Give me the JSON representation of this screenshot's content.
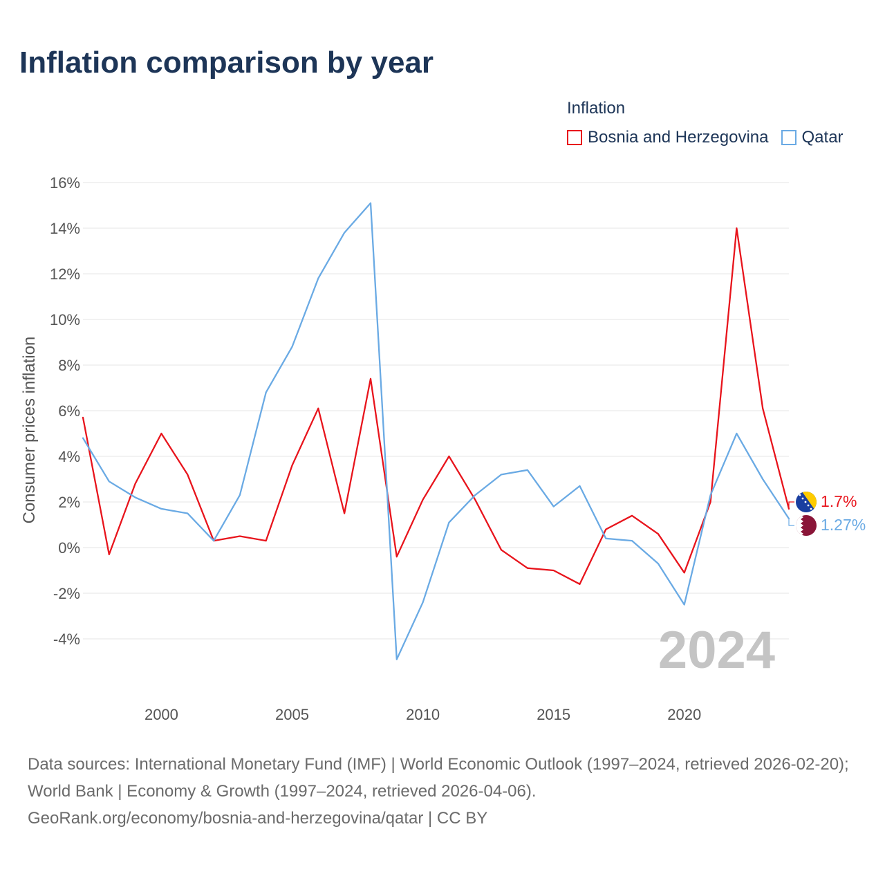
{
  "title": "Inflation comparison by year",
  "legend": {
    "title": "Inflation",
    "items": [
      {
        "label": "Bosnia and Herzegovina",
        "color": "#e8141c"
      },
      {
        "label": "Qatar",
        "color": "#6aaae4"
      }
    ]
  },
  "chart_data": {
    "type": "line",
    "title": "Inflation comparison by year",
    "xlabel": "",
    "ylabel": "Consumer prices inflation",
    "xlim": [
      1997,
      2024
    ],
    "ylim": [
      -6,
      16
    ],
    "x_ticks": [
      2000,
      2005,
      2010,
      2015,
      2020
    ],
    "y_ticks": [
      -4,
      -2,
      0,
      2,
      4,
      6,
      8,
      10,
      12,
      14,
      16
    ],
    "y_tick_labels": [
      "-4%",
      "-2%",
      "0%",
      "2%",
      "4%",
      "6%",
      "8%",
      "10%",
      "12%",
      "14%",
      "16%"
    ],
    "grid": true,
    "legend_position": "top-right",
    "x": [
      1997,
      1998,
      1999,
      2000,
      2001,
      2002,
      2003,
      2004,
      2005,
      2006,
      2007,
      2008,
      2009,
      2010,
      2011,
      2012,
      2013,
      2014,
      2015,
      2016,
      2017,
      2018,
      2019,
      2020,
      2021,
      2022,
      2023,
      2024
    ],
    "series": [
      {
        "name": "Bosnia and Herzegovina",
        "color": "#e8141c",
        "values": [
          5.7,
          -0.3,
          2.8,
          5.0,
          3.2,
          0.3,
          0.5,
          0.3,
          3.6,
          6.1,
          1.5,
          7.4,
          -0.4,
          2.1,
          4.0,
          2.1,
          -0.1,
          -0.9,
          -1.0,
          -1.6,
          0.8,
          1.4,
          0.6,
          -1.1,
          2.0,
          14.0,
          6.1,
          1.7
        ],
        "end_label": "1.7%",
        "flag": "bosnia-flag-icon"
      },
      {
        "name": "Qatar",
        "color": "#6aaae4",
        "values": [
          4.8,
          2.9,
          2.2,
          1.7,
          1.5,
          0.3,
          2.3,
          6.8,
          8.8,
          11.8,
          13.8,
          15.1,
          -4.9,
          -2.4,
          1.1,
          2.3,
          3.2,
          3.4,
          1.8,
          2.7,
          0.4,
          0.3,
          -0.7,
          -2.5,
          2.3,
          5.0,
          3.0,
          1.27
        ],
        "end_label": "1.27%",
        "flag": "qatar-flag-icon"
      }
    ],
    "annotations": [
      {
        "text": "2024"
      }
    ]
  },
  "footer": {
    "sources": "Data sources: International Monetary Fund (IMF) | World Economic Outlook (1997–2024, retrieved 2026-02-20); World Bank | Economy & Growth (1997–2024, retrieved 2026-04-06).",
    "link": "GeoRank.org/economy/bosnia-and-herzegovina/qatar | CC BY"
  }
}
